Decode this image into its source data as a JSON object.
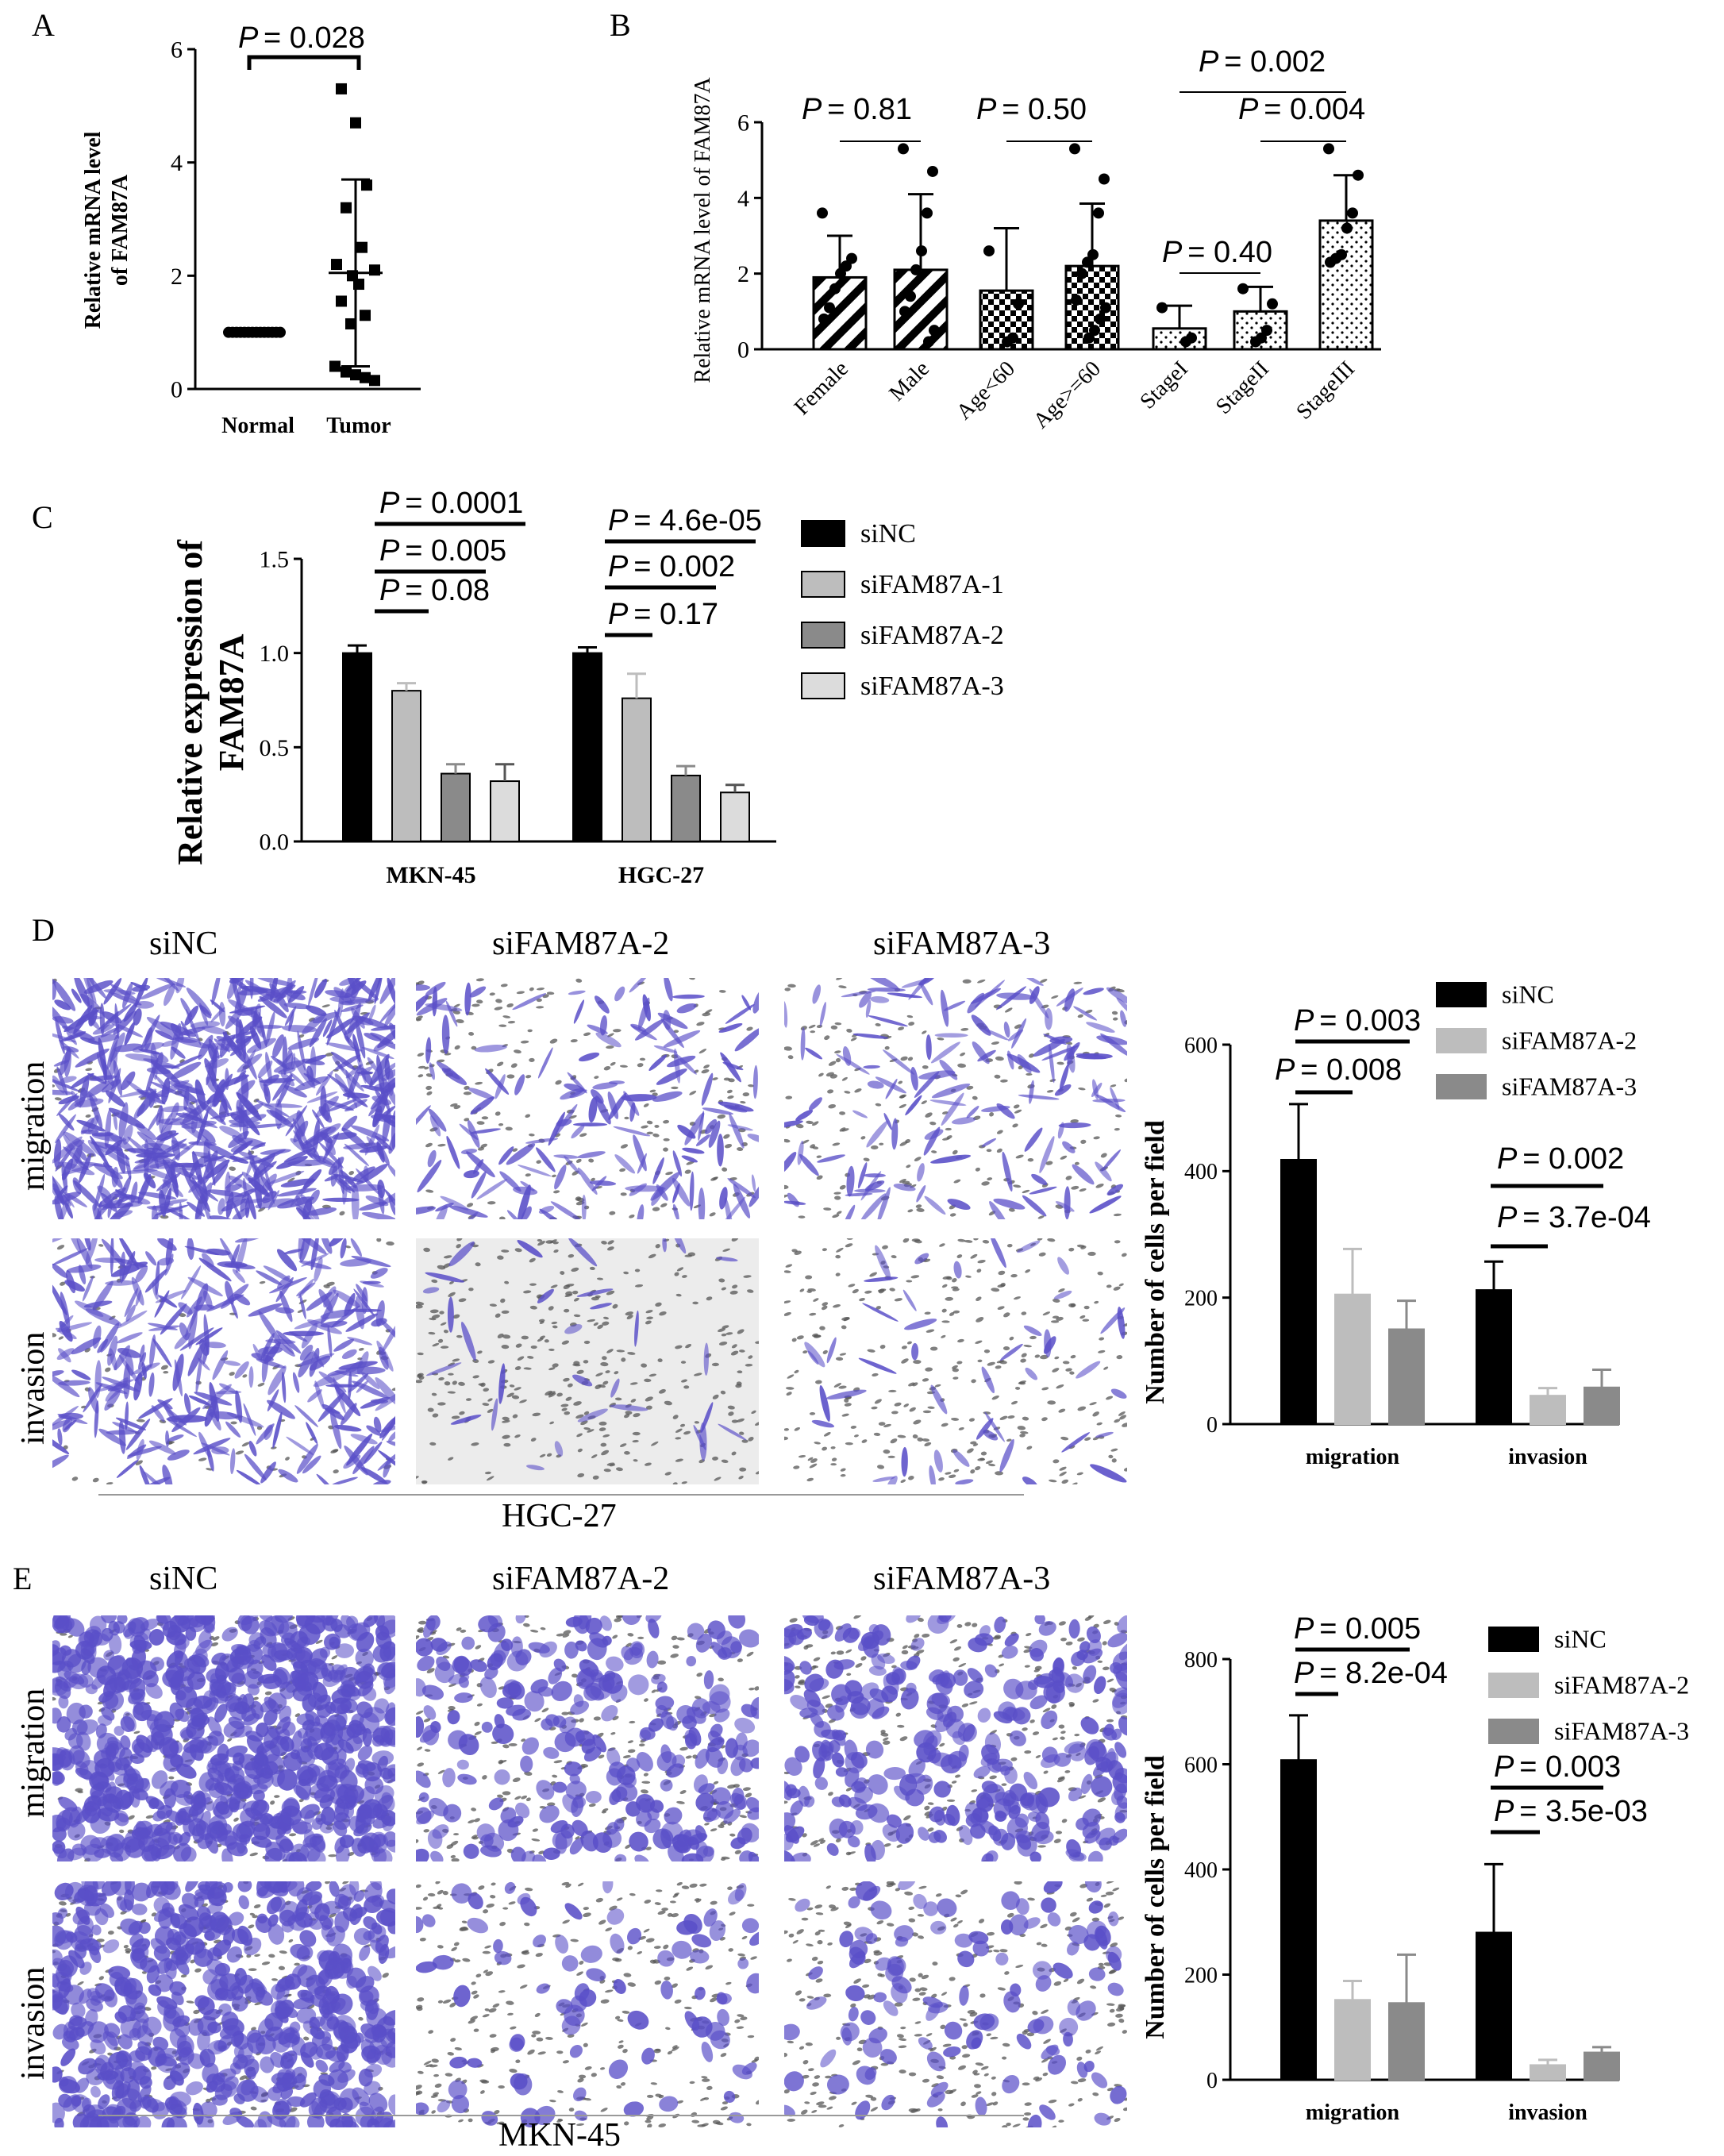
{
  "panels": {
    "A": "A",
    "B": "B",
    "C": "C",
    "D": "D",
    "E": "E"
  },
  "colors": {
    "black": "#000000",
    "lightgray": "#bdbdbd",
    "midgray": "#8a8a8a",
    "verylight": "#dcdcdc",
    "stain": "#5a4fc8"
  },
  "panelA": {
    "ylabel": [
      "Relative mRNA level",
      "of FAM87A"
    ],
    "yticks": [
      "0",
      "2",
      "4",
      "6"
    ],
    "ylim": [
      0,
      6
    ],
    "categories": [
      "Normal",
      "Tumor"
    ],
    "pvalue": "= 0.028",
    "normal_values": [
      1,
      1,
      1,
      1,
      1,
      1,
      1,
      1,
      1,
      1,
      1,
      1,
      1,
      1
    ],
    "tumor_values": [
      5.3,
      4.7,
      3.6,
      3.2,
      2.5,
      2.2,
      2.1,
      2.0,
      1.85,
      1.55,
      1.3,
      1.15,
      0.4,
      0.3,
      0.25,
      0.2,
      0.15
    ],
    "tumor_mean": 2.05,
    "tumor_sd": [
      0.4,
      3.7
    ]
  },
  "panelB": {
    "ylabel": "Relative mRNA level of FAM87A",
    "yticks": [
      "0",
      "2",
      "4",
      "6"
    ],
    "ylim": [
      0,
      6
    ],
    "categories": [
      "Female",
      "Male",
      "Age<60",
      "Age>=60",
      "StageI",
      "StageII",
      "StageIII"
    ],
    "means": [
      1.9,
      2.1,
      1.55,
      2.2,
      0.55,
      1.0,
      3.4
    ],
    "sd_hi": [
      3.0,
      4.1,
      3.2,
      3.85,
      1.15,
      1.65,
      4.6
    ],
    "points": [
      [
        3.6,
        2.4,
        2.2,
        2.0,
        1.6,
        1.1,
        0.8
      ],
      [
        5.3,
        4.7,
        3.6,
        2.6,
        2.1,
        1.4,
        1.0,
        0.5,
        0.2
      ],
      [
        2.6,
        1.2,
        0.3,
        0.2
      ],
      [
        5.3,
        4.5,
        3.6,
        2.5,
        2.3,
        2.0,
        1.3,
        1.1,
        0.8,
        0.5,
        0.3
      ],
      [
        1.1,
        0.3,
        0.2
      ],
      [
        1.6,
        1.2,
        0.5,
        0.3,
        0.2
      ],
      [
        5.3,
        4.6,
        3.6,
        3.2,
        2.5,
        2.4,
        2.3
      ]
    ],
    "pvalues": [
      {
        "text": "= 0.81"
      },
      {
        "text": "= 0.50"
      },
      {
        "text": "= 0.40"
      },
      {
        "text": "= 0.004"
      },
      {
        "text": "= 0.002"
      }
    ]
  },
  "panelC": {
    "ylabel": [
      "Relative expression of",
      "FAM87A"
    ],
    "yticks": [
      "0.0",
      "0.5",
      "1.0",
      "1.5"
    ],
    "ylim": [
      0,
      1.5
    ],
    "categories": [
      "MKN-45",
      "HGC-27"
    ],
    "series": [
      {
        "name": "siNC",
        "values": [
          1.0,
          1.0
        ],
        "err": [
          0.04,
          0.03
        ]
      },
      {
        "name": "siFAM87A-1",
        "values": [
          0.8,
          0.76
        ],
        "err": [
          0.04,
          0.13
        ]
      },
      {
        "name": "siFAM87A-2",
        "values": [
          0.36,
          0.35
        ],
        "err": [
          0.05,
          0.05
        ]
      },
      {
        "name": "siFAM87A-3",
        "values": [
          0.32,
          0.26
        ],
        "err": [
          0.09,
          0.04
        ]
      }
    ],
    "pvalues": [
      {
        "text": "= 0.0001"
      },
      {
        "text": "= 0.005"
      },
      {
        "text": "= 0.08"
      },
      {
        "text": "= 4.6e-05"
      },
      {
        "text": "= 0.002"
      },
      {
        "text": "= 0.17"
      }
    ]
  },
  "panelD": {
    "column_labels": [
      "siNC",
      "siFAM87A-2",
      "siFAM87A-3"
    ],
    "row_labels": [
      "migration",
      "invasion"
    ],
    "cell_line": "HGC-27",
    "chart": {
      "ylabel": "Number of cells per field",
      "yticks": [
        "0",
        "200",
        "400",
        "600"
      ],
      "ylim": [
        0,
        600
      ],
      "categories": [
        "migration",
        "invasion"
      ],
      "series": [
        {
          "name": "siNC",
          "values": [
            418,
            212
          ],
          "err": [
            88,
            45
          ]
        },
        {
          "name": "siFAM87A-2",
          "values": [
            205,
            45
          ],
          "err": [
            72,
            12
          ]
        },
        {
          "name": "siFAM87A-3",
          "values": [
            150,
            58
          ],
          "err": [
            45,
            28
          ]
        }
      ],
      "pvalues": [
        {
          "text": "= 0.003"
        },
        {
          "text": "= 0.008"
        },
        {
          "text": "= 0.002"
        },
        {
          "text": "= 3.7e-04"
        }
      ]
    }
  },
  "panelE": {
    "column_labels": [
      "siNC",
      "siFAM87A-2",
      "siFAM87A-3"
    ],
    "row_labels": [
      "migration",
      "invasion"
    ],
    "cell_line": "MKN-45",
    "chart": {
      "ylabel": "Number of cells per field",
      "yticks": [
        "0",
        "200",
        "400",
        "600",
        "800"
      ],
      "ylim": [
        0,
        800
      ],
      "categories": [
        "migration",
        "invasion"
      ],
      "series": [
        {
          "name": "siNC",
          "values": [
            608,
            280
          ],
          "err": [
            85,
            130
          ]
        },
        {
          "name": "siFAM87A-2",
          "values": [
            152,
            28
          ],
          "err": [
            36,
            10
          ]
        },
        {
          "name": "siFAM87A-3",
          "values": [
            146,
            52
          ],
          "err": [
            92,
            10
          ]
        }
      ],
      "pvalues": [
        {
          "text": "= 0.005"
        },
        {
          "text": "= 8.2e-04"
        },
        {
          "text": "= 0.003"
        },
        {
          "text": "= 3.5e-03"
        }
      ]
    }
  },
  "chart_data": [
    {
      "type": "scatter",
      "categories": [
        "Normal",
        "Tumor"
      ],
      "ylabel": "Relative mRNA level of FAM87A",
      "ylim": [
        0,
        6
      ],
      "series": [
        {
          "name": "Normal",
          "values": [
            1,
            1,
            1,
            1,
            1,
            1,
            1,
            1,
            1,
            1,
            1,
            1,
            1,
            1
          ]
        },
        {
          "name": "Tumor",
          "values": [
            5.3,
            4.7,
            3.6,
            3.2,
            2.5,
            2.2,
            2.1,
            2.0,
            1.85,
            1.55,
            1.3,
            1.15,
            0.4,
            0.3,
            0.25,
            0.2,
            0.15
          ]
        }
      ]
    },
    {
      "type": "bar",
      "categories": [
        "Female",
        "Male",
        "Age<60",
        "Age>=60",
        "StageI",
        "StageII",
        "StageIII"
      ],
      "values": [
        1.9,
        2.1,
        1.55,
        2.2,
        0.55,
        1.0,
        3.4
      ],
      "ylabel": "Relative mRNA level of FAM87A",
      "ylim": [
        0,
        6
      ]
    },
    {
      "type": "bar",
      "categories": [
        "MKN-45",
        "HGC-27"
      ],
      "series": [
        {
          "name": "siNC",
          "values": [
            1.0,
            1.0
          ]
        },
        {
          "name": "siFAM87A-1",
          "values": [
            0.8,
            0.76
          ]
        },
        {
          "name": "siFAM87A-2",
          "values": [
            0.36,
            0.35
          ]
        },
        {
          "name": "siFAM87A-3",
          "values": [
            0.32,
            0.26
          ]
        }
      ],
      "ylabel": "Relative expression of FAM87A",
      "ylim": [
        0,
        1.5
      ]
    },
    {
      "type": "bar",
      "categories": [
        "migration",
        "invasion"
      ],
      "series": [
        {
          "name": "siNC",
          "values": [
            418,
            212
          ]
        },
        {
          "name": "siFAM87A-2",
          "values": [
            205,
            45
          ]
        },
        {
          "name": "siFAM87A-3",
          "values": [
            150,
            58
          ]
        }
      ],
      "ylabel": "Number of cells per field",
      "ylim": [
        0,
        600
      ]
    },
    {
      "type": "bar",
      "categories": [
        "migration",
        "invasion"
      ],
      "series": [
        {
          "name": "siNC",
          "values": [
            608,
            280
          ]
        },
        {
          "name": "siFAM87A-2",
          "values": [
            152,
            28
          ]
        },
        {
          "name": "siFAM87A-3",
          "values": [
            146,
            52
          ]
        }
      ],
      "ylabel": "Number of cells per field",
      "ylim": [
        0,
        800
      ]
    }
  ]
}
